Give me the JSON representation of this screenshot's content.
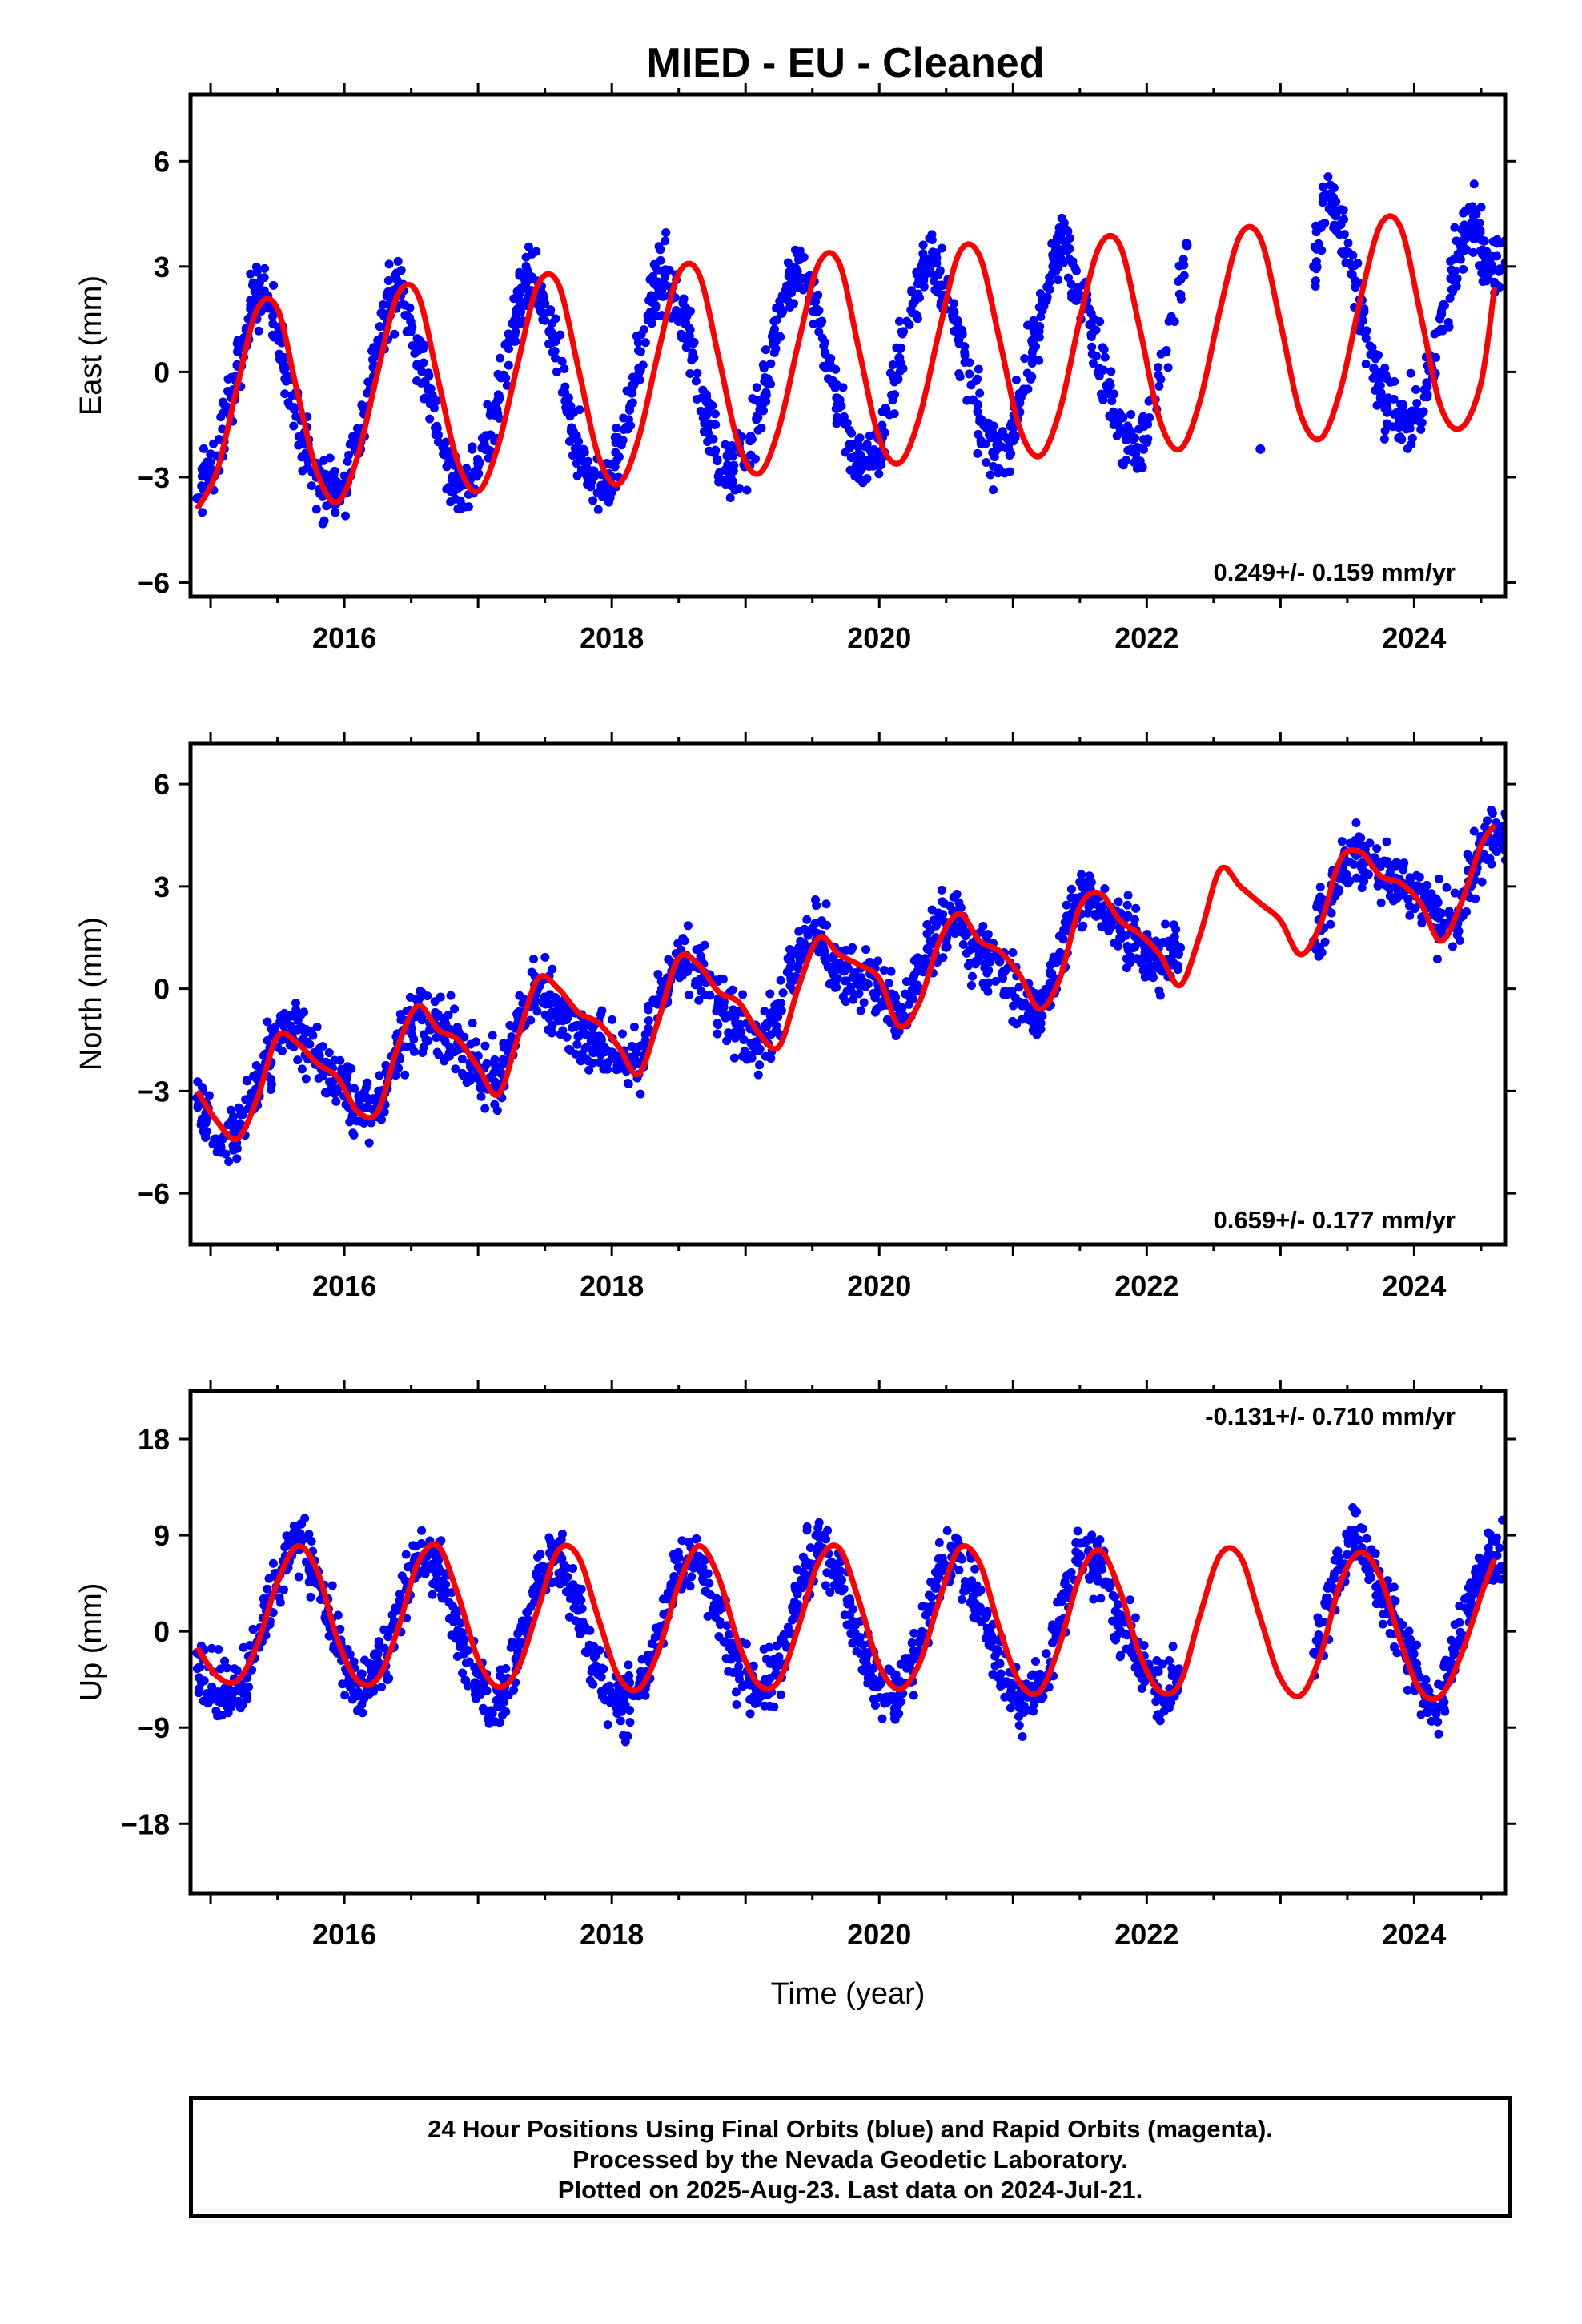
{
  "title": "MIED  - EU - Cleaned",
  "colors": {
    "data": "#0000ff",
    "model": "#ff0000",
    "frame": "#000000"
  },
  "chart_data": [
    {
      "type": "scatter",
      "ylabel": "East (mm)",
      "xlabel": "",
      "xlim": [
        2014.85,
        2024.68
      ],
      "ylim": [
        -6.4,
        7.9
      ],
      "yticks": [
        -6,
        -3,
        0,
        3,
        6
      ],
      "yticklabels": [
        "−6",
        "−3",
        "0",
        "3",
        "6"
      ],
      "xticks": [
        2016,
        2018,
        2020,
        2022,
        2024
      ],
      "xticklabels": [
        "2016",
        "2018",
        "2020",
        "2022",
        "2024"
      ],
      "rate_label": "0.249+/- 0.159 mm/yr",
      "rate_position": "bottom-right",
      "series": [
        {
          "name": "",
          "kind": "points",
          "x": [
            2014.9,
            2015.05,
            2015.2,
            2015.3,
            2015.4,
            2015.55,
            2015.7,
            2015.85,
            2016.0,
            2016.15,
            2016.3,
            2016.4,
            2016.55,
            2016.7,
            2016.85,
            2017.0,
            2017.15,
            2017.3,
            2017.4,
            2017.55,
            2017.7,
            2017.85,
            2018.0,
            2018.15,
            2018.3,
            2018.4,
            2018.55,
            2018.7,
            2018.85,
            2019.0,
            2019.15,
            2019.3,
            2019.4,
            2019.55,
            2019.7,
            2019.85,
            2020.0,
            2020.15,
            2020.3,
            2020.4,
            2020.55,
            2020.7,
            2020.85,
            2021.0,
            2021.15,
            2021.3,
            2021.4,
            2021.55,
            2021.7,
            2021.85,
            2022.0,
            2022.3,
            2022.85,
            2023.25,
            2023.35,
            2023.45,
            2023.6,
            2023.75,
            2023.9,
            2024.05,
            2024.2,
            2024.35,
            2024.45,
            2024.55
          ],
          "y": [
            -3.6,
            -2.4,
            0.2,
            1.8,
            2.3,
            0.4,
            -2.0,
            -3.5,
            -3.2,
            -1.2,
            1.6,
            2.4,
            0.8,
            -1.8,
            -3.3,
            -2.9,
            -0.8,
            1.8,
            2.7,
            1.1,
            -1.6,
            -3.1,
            -3.0,
            -0.6,
            2.0,
            2.9,
            1.4,
            -1.2,
            -2.8,
            -2.6,
            -0.2,
            2.3,
            3.2,
            1.4,
            -1.0,
            -2.6,
            -2.3,
            0.4,
            2.6,
            3.4,
            1.6,
            -0.8,
            -2.3,
            -1.8,
            0.8,
            3.0,
            3.7,
            1.8,
            -0.4,
            -1.9,
            -2.0,
            3.6,
            -2.2,
            3.0,
            5.0,
            4.2,
            1.6,
            -0.6,
            -1.4,
            -1.2,
            1.2,
            3.6,
            4.6,
            3.0
          ]
        },
        {
          "name": "",
          "kind": "line",
          "x": [
            2014.9,
            2015.05,
            2015.2,
            2015.35,
            2015.5,
            2015.65,
            2015.8,
            2015.95,
            2016.1,
            2016.25,
            2016.4,
            2016.55,
            2016.7,
            2016.85,
            2017.0,
            2017.15,
            2017.3,
            2017.45,
            2017.6,
            2017.75,
            2017.9,
            2018.05,
            2018.2,
            2018.35,
            2018.5,
            2018.65,
            2018.8,
            2018.95,
            2019.1,
            2019.25,
            2019.4,
            2019.55,
            2019.7,
            2019.85,
            2020.0,
            2020.15,
            2020.3,
            2020.45,
            2020.6,
            2020.75,
            2020.9,
            2021.05,
            2021.2,
            2021.35,
            2021.5,
            2021.65,
            2021.8,
            2021.95,
            2022.1,
            2022.25,
            2022.4,
            2022.55,
            2022.7,
            2022.85,
            2023.0,
            2023.15,
            2023.3,
            2023.45,
            2023.6,
            2023.75,
            2023.9,
            2024.05,
            2024.2,
            2024.35,
            2024.5,
            2024.6
          ],
          "y": [
            -3.9,
            -2.8,
            -0.4,
            1.8,
            1.8,
            -0.6,
            -2.9,
            -3.7,
            -2.4,
            0.0,
            2.2,
            2.2,
            -0.2,
            -2.6,
            -3.4,
            -2.1,
            0.3,
            2.5,
            2.5,
            0.1,
            -2.4,
            -3.2,
            -1.9,
            0.6,
            2.8,
            2.8,
            0.4,
            -2.1,
            -2.9,
            -1.6,
            0.9,
            3.1,
            3.1,
            0.6,
            -1.9,
            -2.6,
            -1.3,
            1.2,
            3.4,
            3.3,
            0.9,
            -1.6,
            -2.4,
            -1.1,
            1.5,
            3.6,
            3.6,
            1.2,
            -1.4,
            -2.2,
            -0.8,
            1.8,
            3.9,
            3.8,
            1.4,
            -1.2,
            -1.9,
            -0.5,
            2.1,
            4.2,
            4.1,
            1.6,
            -1.0,
            -1.6,
            -0.3,
            2.4
          ]
        }
      ]
    },
    {
      "type": "scatter",
      "ylabel": "North (mm)",
      "xlabel": "",
      "xlim": [
        2014.85,
        2024.68
      ],
      "ylim": [
        -7.5,
        7.2
      ],
      "yticks": [
        -6,
        -3,
        0,
        3,
        6
      ],
      "yticklabels": [
        "−6",
        "−3",
        "0",
        "3",
        "6"
      ],
      "xticks": [
        2016,
        2018,
        2020,
        2022,
        2024
      ],
      "xticklabels": [
        "2016",
        "2018",
        "2020",
        "2022",
        "2024"
      ],
      "rate_label": "0.659+/- 0.177 mm/yr",
      "rate_position": "bottom-right",
      "series": [
        {
          "name": "",
          "kind": "points",
          "x": [
            2014.9,
            2015.05,
            2015.2,
            2015.35,
            2015.5,
            2015.65,
            2015.8,
            2015.95,
            2016.1,
            2016.25,
            2016.4,
            2016.55,
            2016.7,
            2016.85,
            2017.0,
            2017.15,
            2017.3,
            2017.45,
            2017.6,
            2017.75,
            2017.9,
            2018.05,
            2018.2,
            2018.35,
            2018.5,
            2018.65,
            2018.8,
            2018.95,
            2019.1,
            2019.25,
            2019.4,
            2019.55,
            2019.7,
            2019.85,
            2020.0,
            2020.15,
            2020.3,
            2020.45,
            2020.6,
            2020.75,
            2020.9,
            2021.05,
            2021.2,
            2021.35,
            2021.5,
            2021.65,
            2021.8,
            2021.95,
            2022.1,
            2022.25,
            2023.25,
            2023.4,
            2023.55,
            2023.7,
            2023.85,
            2024.0,
            2024.15,
            2024.3,
            2024.45,
            2024.55
          ],
          "y": [
            -3.2,
            -4.6,
            -4.2,
            -2.6,
            -1.4,
            -1.2,
            -2.2,
            -2.6,
            -3.6,
            -3.4,
            -1.6,
            -0.8,
            -1.2,
            -1.6,
            -2.4,
            -2.8,
            -1.0,
            0.2,
            -0.6,
            -1.4,
            -1.6,
            -2.0,
            -2.2,
            -0.4,
            0.8,
            0.6,
            -0.4,
            -1.2,
            -1.8,
            -0.6,
            1.2,
            1.4,
            0.6,
            0.2,
            0.0,
            -0.8,
            0.6,
            2.0,
            1.8,
            1.0,
            0.8,
            -0.4,
            -0.6,
            1.0,
            2.6,
            2.4,
            1.8,
            1.4,
            0.6,
            1.2,
            1.4,
            3.0,
            4.0,
            3.6,
            3.2,
            3.0,
            2.2,
            1.8,
            3.6,
            4.4
          ]
        },
        {
          "name": "",
          "kind": "line",
          "x": [
            2014.9,
            2015.05,
            2015.2,
            2015.35,
            2015.5,
            2015.65,
            2015.8,
            2015.95,
            2016.1,
            2016.25,
            2016.4,
            2016.55,
            2016.7,
            2016.85,
            2017.0,
            2017.15,
            2017.3,
            2017.45,
            2017.6,
            2017.75,
            2017.9,
            2018.05,
            2018.2,
            2018.35,
            2018.5,
            2018.65,
            2018.8,
            2018.95,
            2019.1,
            2019.25,
            2019.4,
            2019.55,
            2019.7,
            2019.85,
            2020.0,
            2020.15,
            2020.3,
            2020.45,
            2020.6,
            2020.75,
            2020.9,
            2021.05,
            2021.2,
            2021.35,
            2021.5,
            2021.65,
            2021.8,
            2021.95,
            2022.1,
            2022.25,
            2022.4,
            2022.55,
            2022.7,
            2022.85,
            2023.0,
            2023.15,
            2023.3,
            2023.45,
            2023.6,
            2023.75,
            2023.9,
            2024.05,
            2024.2,
            2024.35,
            2024.5,
            2024.6
          ],
          "y": [
            -3.0,
            -3.9,
            -4.4,
            -3.2,
            -1.4,
            -1.6,
            -2.2,
            -2.6,
            -3.6,
            -3.6,
            -1.7,
            -0.5,
            -1.2,
            -1.5,
            -2.3,
            -3.1,
            -1.4,
            0.3,
            0.0,
            -0.7,
            -1.0,
            -1.7,
            -2.5,
            -0.9,
            0.9,
            0.7,
            -0.1,
            -0.4,
            -1.3,
            -1.7,
            0.1,
            1.5,
            1.0,
            0.7,
            0.3,
            -1.1,
            -0.4,
            1.4,
            2.2,
            1.4,
            1.1,
            0.4,
            -0.6,
            0.3,
            2.4,
            2.8,
            2.0,
            1.6,
            1.0,
            0.1,
            1.6,
            3.5,
            3.0,
            2.5,
            2.0,
            1.0,
            1.9,
            3.8,
            4.0,
            3.3,
            3.1,
            2.5,
            1.4,
            2.5,
            4.2,
            4.8
          ]
        }
      ]
    },
    {
      "type": "scatter",
      "ylabel": "Up (mm)",
      "xlabel": "Time (year)",
      "xlim": [
        2014.85,
        2024.68
      ],
      "ylim": [
        -24.5,
        22.5
      ],
      "yticks": [
        -18,
        -9,
        0,
        9,
        18
      ],
      "yticklabels": [
        "−18",
        "−9",
        "0",
        "9",
        "18"
      ],
      "xticks": [
        2016,
        2018,
        2020,
        2022,
        2024
      ],
      "xticklabels": [
        "2016",
        "2018",
        "2020",
        "2022",
        "2024"
      ],
      "rate_label": "-0.131+/- 0.710 mm/yr",
      "rate_position": "top-right",
      "series": [
        {
          "name": "",
          "kind": "points",
          "x": [
            2014.9,
            2015.05,
            2015.2,
            2015.35,
            2015.5,
            2015.65,
            2015.8,
            2015.95,
            2016.1,
            2016.25,
            2016.4,
            2016.55,
            2016.7,
            2016.85,
            2017.0,
            2017.15,
            2017.3,
            2017.45,
            2017.6,
            2017.75,
            2017.9,
            2018.05,
            2018.2,
            2018.35,
            2018.5,
            2018.65,
            2018.8,
            2018.95,
            2019.1,
            2019.25,
            2019.4,
            2019.55,
            2019.7,
            2019.85,
            2020.0,
            2020.15,
            2020.3,
            2020.45,
            2020.6,
            2020.75,
            2020.9,
            2021.05,
            2021.2,
            2021.35,
            2021.5,
            2021.65,
            2021.8,
            2021.95,
            2022.1,
            2022.25,
            2023.25,
            2023.4,
            2023.55,
            2023.7,
            2023.85,
            2024.0,
            2024.15,
            2024.3,
            2024.45,
            2024.55
          ],
          "y": [
            -2.0,
            -6.0,
            -5.5,
            -1.0,
            5.0,
            9.0,
            5.0,
            -2.0,
            -6.0,
            -4.0,
            2.0,
            7.0,
            6.0,
            0.0,
            -5.0,
            -7.0,
            -2.0,
            5.0,
            7.0,
            2.0,
            -4.0,
            -7.0,
            -6.0,
            0.0,
            6.0,
            7.0,
            2.0,
            -4.0,
            -6.0,
            -3.0,
            4.0,
            8.0,
            5.0,
            -1.0,
            -5.0,
            -6.0,
            -1.0,
            6.0,
            7.0,
            2.0,
            -3.0,
            -6.0,
            -6.0,
            1.0,
            7.0,
            6.0,
            1.0,
            -3.0,
            -6.0,
            -4.0,
            -2.0,
            4.0,
            9.0,
            6.0,
            1.0,
            -4.0,
            -7.0,
            -2.0,
            4.0,
            7.0
          ]
        },
        {
          "name": "",
          "kind": "line",
          "x": [
            2014.9,
            2015.05,
            2015.2,
            2015.35,
            2015.5,
            2015.65,
            2015.8,
            2015.95,
            2016.1,
            2016.25,
            2016.4,
            2016.55,
            2016.7,
            2016.85,
            2017.0,
            2017.15,
            2017.3,
            2017.45,
            2017.6,
            2017.75,
            2017.9,
            2018.05,
            2018.2,
            2018.35,
            2018.5,
            2018.65,
            2018.8,
            2018.95,
            2019.1,
            2019.25,
            2019.4,
            2019.55,
            2019.7,
            2019.85,
            2020.0,
            2020.15,
            2020.3,
            2020.45,
            2020.6,
            2020.75,
            2020.9,
            2021.05,
            2021.2,
            2021.35,
            2021.5,
            2021.65,
            2021.8,
            2021.95,
            2022.1,
            2022.25,
            2022.4,
            2022.55,
            2022.7,
            2022.85,
            2023.0,
            2023.15,
            2023.3,
            2023.45,
            2023.6,
            2023.75,
            2023.9,
            2024.05,
            2024.2,
            2024.35,
            2024.5,
            2024.6
          ],
          "y": [
            -1.5,
            -4.2,
            -4.6,
            -1.2,
            4.6,
            8.0,
            5.6,
            -0.8,
            -4.6,
            -4.4,
            0.2,
            6.4,
            8.0,
            3.4,
            -2.6,
            -5.2,
            -3.4,
            2.2,
            7.6,
            7.0,
            1.2,
            -4.2,
            -5.4,
            -1.8,
            4.4,
            8.0,
            5.0,
            -1.2,
            -5.0,
            -4.6,
            0.6,
            6.6,
            7.8,
            2.8,
            -3.2,
            -5.4,
            -3.0,
            3.0,
            7.8,
            6.4,
            0.2,
            -4.8,
            -5.6,
            -1.2,
            5.2,
            7.6,
            3.8,
            -2.2,
            -5.6,
            -4.8,
            1.6,
            7.2,
            7.0,
            1.2,
            -4.4,
            -6.0,
            -2.2,
            4.6,
            7.4,
            5.0,
            -1.0,
            -5.6,
            -6.0,
            -2.2,
            3.4,
            6.8
          ]
        }
      ]
    }
  ],
  "footer": {
    "line1": "24 Hour Positions Using Final Orbits (blue) and Rapid Orbits (magenta).",
    "line2": "Processed by the Nevada Geodetic Laboratory.",
    "line3": "Plotted on 2025-Aug-23. Last data on 2024-Jul-21."
  }
}
